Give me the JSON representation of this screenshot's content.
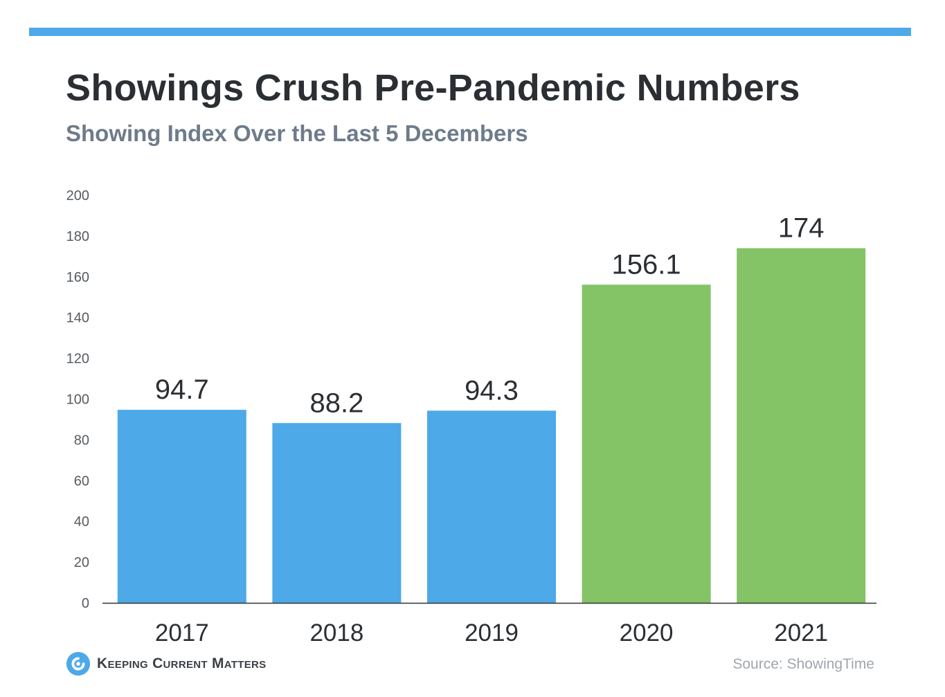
{
  "header": {
    "title": "Showings Crush Pre-Pandemic Numbers",
    "subtitle": "Showing Index Over the Last 5 Decembers"
  },
  "footer": {
    "logo_text": "Keeping Current Matters",
    "source": "Source: ShowingTime"
  },
  "colors": {
    "accent_bar": "#4DA9E8",
    "pre_pandemic": "#4DA9E8",
    "pandemic": "#84C366"
  },
  "chart_data": {
    "type": "bar",
    "title": "Showings Crush Pre-Pandemic Numbers",
    "subtitle": "Showing Index Over the Last 5 Decembers",
    "xlabel": "",
    "ylabel": "",
    "categories": [
      "2017",
      "2018",
      "2019",
      "2020",
      "2021"
    ],
    "values": [
      94.7,
      88.2,
      94.3,
      156.1,
      174
    ],
    "value_labels": [
      "94.7",
      "88.2",
      "94.3",
      "156.1",
      "174"
    ],
    "bar_colors": [
      "#4DA9E8",
      "#4DA9E8",
      "#4DA9E8",
      "#84C366",
      "#84C366"
    ],
    "ylim": [
      0,
      200
    ],
    "yticks": [
      0,
      20,
      40,
      60,
      80,
      100,
      120,
      140,
      160,
      180,
      200
    ],
    "grid": false,
    "legend": "none"
  }
}
